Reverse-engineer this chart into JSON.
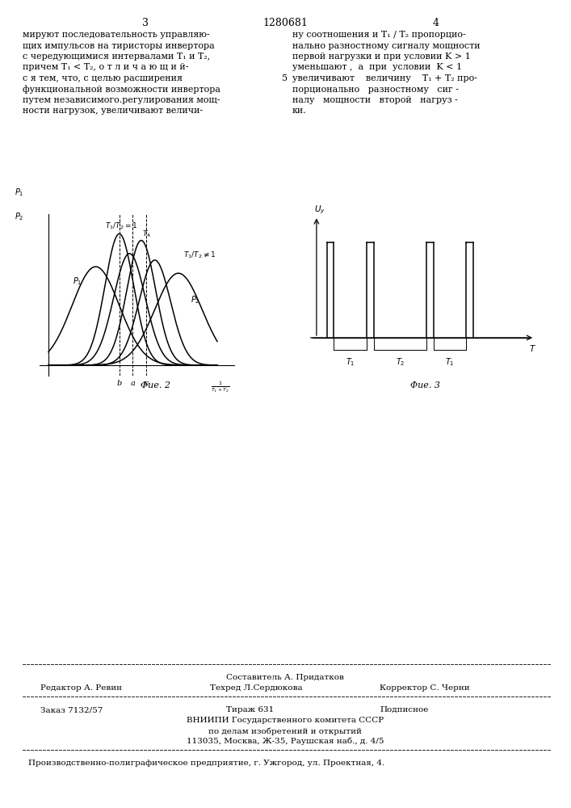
{
  "page_number_left": "3",
  "page_number_center": "1280681",
  "page_number_right": "4",
  "text_left_lines": [
    "мируют последовательность управляю-",
    "щих импульсов на тиристоры инвертора",
    "с чередующимися интервалами T₁ и T₂,",
    "причем T₁ < T₂, о т л и ч а ю щ и й-",
    "с я тем, что, с целью расширения",
    "функциональной возможности инвертора",
    "путем независимого.регулирования мощ-",
    "ности нагрузок, увеличивают величи-"
  ],
  "text_right_lines": [
    "ну соотношения и T₁ / T₂ пропорцио-",
    "нально разностному сигналу мощности",
    "первой нагрузки и при условии K > 1",
    "уменьшают ,  а  при  условии  K < 1",
    "увеличивают    величину    T₁ + T₂ про-",
    "порционально   разностному   сиг -",
    "налу   мощности   второй   нагруз -",
    "ки."
  ],
  "line_number": "5",
  "fig2_caption": "Φue. 2",
  "fig3_caption": "Φue. 3",
  "footer_line1": "Составитель А. Придатков",
  "footer_line2_left": "Редактор А. Ревин",
  "footer_line2_mid": "Техред Л.Сердюкова",
  "footer_line2_right": "Корректор С. Черни",
  "footer_line3_left": "Заказ 7132/57",
  "footer_line3_mid": "Тираж 631",
  "footer_line3_right": "Подписное",
  "footer_line4": "ВНИИПИ Государственного комитета СССР",
  "footer_line5": "по делам изобретений и открытий",
  "footer_line6": "113035, Москва, Ж-35, Раушская наб., д. 4/5",
  "footer_line7": "Производственно-полиграфическое предприятие, г. Ужгород, ул. Проектная, 4.",
  "bg_color": "#ffffff",
  "text_color": "#000000"
}
